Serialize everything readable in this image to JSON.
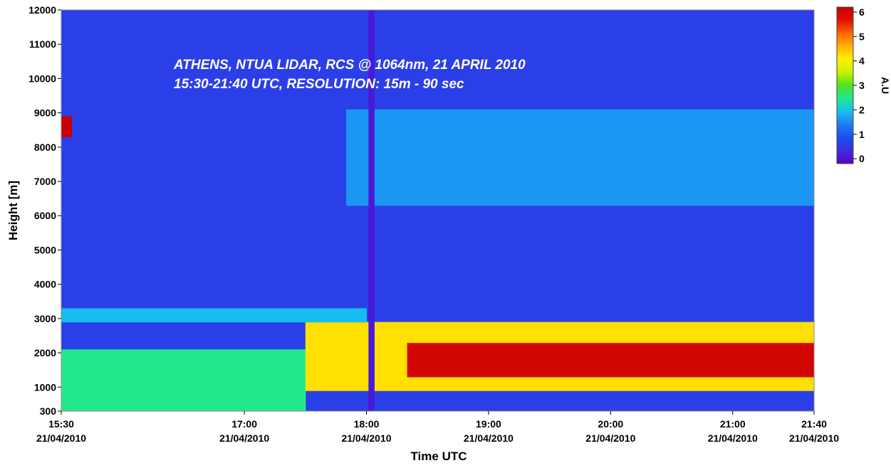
{
  "chart_data": {
    "type": "heatmap",
    "title_lines": [
      "ATHENS, NTUA LIDAR, RCS @ 1064nm, 21 APRIL 2010",
      "15:30-21:40 UTC, RESOLUTION: 15m - 90 sec"
    ],
    "xlabel": "Time UTC",
    "ylabel": "Height [m]",
    "colorbar_label": "A.U",
    "x_range_min": [
      930,
      1300
    ],
    "y_range_m": [
      300,
      12000
    ],
    "colorbar_range": [
      -0.2,
      6.2
    ],
    "x_ticks": [
      {
        "min": 930,
        "time": "15:30",
        "date": "21/04/2010"
      },
      {
        "min": 1020,
        "time": "17:00",
        "date": "21/04/2010"
      },
      {
        "min": 1080,
        "time": "18:00",
        "date": "21/04/2010"
      },
      {
        "min": 1140,
        "time": "19:00",
        "date": "21/04/2010"
      },
      {
        "min": 1200,
        "time": "20:00",
        "date": "21/04/2010"
      },
      {
        "min": 1260,
        "time": "21:00",
        "date": "21/04/2010"
      },
      {
        "min": 1300,
        "time": "21:40",
        "date": "21/04/2010"
      }
    ],
    "y_ticks": [
      {
        "value": 300,
        "label": "300"
      },
      {
        "value": 1000,
        "label": "1000"
      },
      {
        "value": 2000,
        "label": "2000"
      },
      {
        "value": 3000,
        "label": "3000"
      },
      {
        "value": 4000,
        "label": "4000"
      },
      {
        "value": 5000,
        "label": "5000"
      },
      {
        "value": 6000,
        "label": "6000"
      },
      {
        "value": 7000,
        "label": "7000"
      },
      {
        "value": 8000,
        "label": "8000"
      },
      {
        "value": 9000,
        "label": "9000"
      },
      {
        "value": 10000,
        "label": "10000"
      },
      {
        "value": 11000,
        "label": "11000"
      },
      {
        "value": 12000,
        "label": "12000"
      }
    ],
    "colorbar_ticks": [
      {
        "value": 0,
        "label": "0"
      },
      {
        "value": 1,
        "label": "1"
      },
      {
        "value": 2,
        "label": "2"
      },
      {
        "value": 3,
        "label": "3"
      },
      {
        "value": 4,
        "label": "4"
      },
      {
        "value": 5,
        "label": "5"
      },
      {
        "value": 6,
        "label": "6"
      }
    ],
    "colormap": [
      "#5a00c8",
      "#3c2ee0",
      "#1a50f0",
      "#1e7cf5",
      "#18c0f0",
      "#20e890",
      "#50e020",
      "#c8f000",
      "#fff000",
      "#ffb000",
      "#ff6400",
      "#e01000",
      "#c80000"
    ],
    "background_au": 0.6,
    "data_gap_min": [
      1081,
      1084
    ],
    "layers_au": [
      {
        "feature": "boundary layer aerosol, 15:30-17:30",
        "time_min": [
          930,
          1050
        ],
        "height_m": [
          300,
          2000
        ],
        "value": 2.5
      },
      {
        "feature": "aerosol layer top, 15:30-18:00",
        "time_min": [
          930,
          1080
        ],
        "height_m": [
          2800,
          3200
        ],
        "value": 1.9
      },
      {
        "feature": "dense aerosol layer core",
        "time_min": [
          1100,
          1300
        ],
        "height_m": [
          1300,
          2300
        ],
        "value": 6.0
      },
      {
        "feature": "dense aerosol layer envelope",
        "time_min": [
          1050,
          1300
        ],
        "height_m": [
          800,
          2800
        ],
        "value": 4.2
      },
      {
        "feature": "descending elevated layer",
        "time_min": [
          1070,
          1300
        ],
        "height_m": [
          6300,
          9000
        ],
        "value": 1.6
      },
      {
        "feature": "cloud",
        "time_min": [
          930,
          935
        ],
        "height_m": [
          8200,
          8800
        ],
        "value": 6.2
      }
    ]
  }
}
